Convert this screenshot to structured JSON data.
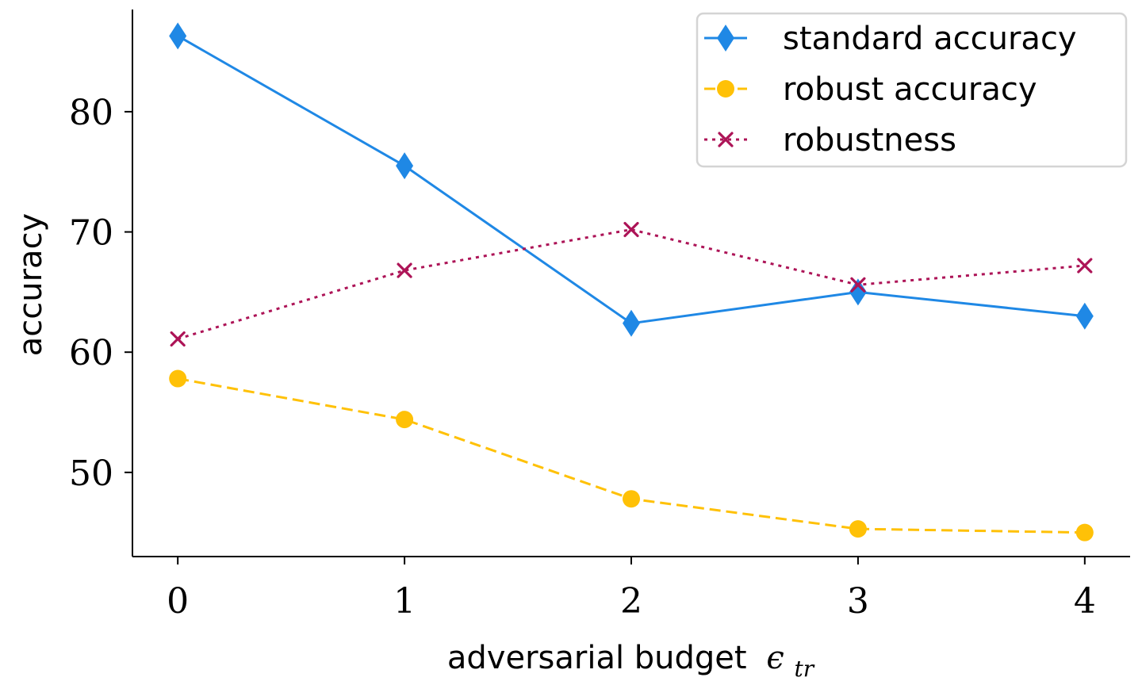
{
  "chart_data": {
    "type": "line",
    "x": [
      0,
      1,
      2,
      3,
      4
    ],
    "xlabel": "adversarial budget",
    "xlabel_symbol": "ϵ",
    "xlabel_subscript": "tr",
    "ylabel": "accuracy",
    "xlim": [
      -0.2,
      4.2
    ],
    "ylim": [
      43,
      88.5
    ],
    "xticks": [
      0,
      1,
      2,
      3,
      4
    ],
    "yticks": [
      50,
      60,
      70,
      80
    ],
    "grid": false,
    "legend_position": "top-right",
    "series": [
      {
        "name": "standard accuracy",
        "values": [
          86.3,
          75.5,
          62.4,
          65.0,
          63.0
        ],
        "color": "#1f88e5",
        "line_style": "solid",
        "marker": "diamond"
      },
      {
        "name": "robust accuracy",
        "values": [
          57.8,
          54.4,
          47.8,
          45.3,
          45.0
        ],
        "color": "#ffc107",
        "line_style": "dashed",
        "marker": "circle"
      },
      {
        "name": "robustness",
        "values": [
          61.1,
          66.8,
          70.2,
          65.6,
          67.2
        ],
        "color": "#ad1457",
        "line_style": "dotted",
        "marker": "x"
      }
    ]
  }
}
